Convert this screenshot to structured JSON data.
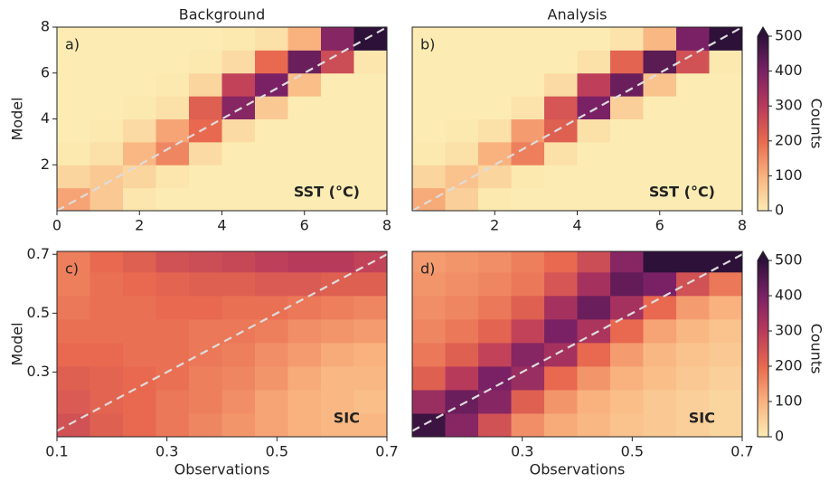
{
  "chart_data": [
    {
      "type": "hexbin",
      "title": "Background",
      "panel_label": "a)",
      "annotation": "SST (°C)",
      "ylabel": "Model",
      "xlim": [
        0,
        8
      ],
      "ylim": [
        0,
        8
      ],
      "xticks": [
        0,
        2,
        4,
        6,
        8
      ],
      "yticks": [
        2,
        4,
        6,
        8
      ],
      "diagonal": true,
      "clim": [
        0,
        500
      ],
      "colormap": [
        "#fcecb3",
        "#f9b27e",
        "#e8694f",
        "#b83a5b",
        "#7a2165",
        "#2d1139"
      ],
      "x_centers": [
        0.4,
        1.2,
        2.0,
        2.8,
        3.6,
        4.4,
        5.2,
        6.0,
        6.8,
        7.6
      ],
      "y_centers": [
        0.5,
        1.5,
        2.5,
        3.5,
        4.5,
        5.5,
        6.5,
        7.5
      ],
      "counts": [
        [
          120,
          60,
          10,
          0,
          0,
          0,
          0,
          0,
          0,
          0
        ],
        [
          40,
          60,
          40,
          10,
          0,
          0,
          0,
          0,
          0,
          0
        ],
        [
          5,
          20,
          90,
          160,
          30,
          0,
          0,
          0,
          0,
          0
        ],
        [
          0,
          5,
          30,
          120,
          200,
          30,
          0,
          0,
          0,
          0
        ],
        [
          0,
          0,
          5,
          20,
          220,
          380,
          60,
          0,
          0,
          0
        ],
        [
          0,
          0,
          0,
          5,
          40,
          280,
          400,
          80,
          0,
          0
        ],
        [
          0,
          0,
          0,
          0,
          5,
          30,
          200,
          420,
          260,
          10
        ],
        [
          0,
          0,
          0,
          0,
          0,
          5,
          20,
          100,
          380,
          500
        ]
      ]
    },
    {
      "type": "hexbin",
      "title": "Analysis",
      "panel_label": "b)",
      "annotation": "SST (°C)",
      "xlim": [
        0,
        8
      ],
      "ylim": [
        0,
        8
      ],
      "xticks": [
        2,
        4,
        6,
        8
      ],
      "diagonal": true,
      "clim": [
        0,
        500
      ],
      "colormap": [
        "#fcecb3",
        "#f9b27e",
        "#e8694f",
        "#b83a5b",
        "#7a2165",
        "#2d1139"
      ],
      "colorbar": {
        "label": "Counts",
        "ticks": [
          0,
          100,
          200,
          300,
          400,
          500
        ]
      },
      "x_centers": [
        0.4,
        1.2,
        2.0,
        2.8,
        3.6,
        4.4,
        5.2,
        6.0,
        6.8,
        7.6
      ],
      "y_centers": [
        0.5,
        1.5,
        2.5,
        3.5,
        4.5,
        5.5,
        6.5,
        7.5
      ],
      "counts": [
        [
          110,
          50,
          5,
          0,
          0,
          0,
          0,
          0,
          0,
          0
        ],
        [
          40,
          70,
          40,
          5,
          0,
          0,
          0,
          0,
          0,
          0
        ],
        [
          5,
          20,
          100,
          170,
          20,
          0,
          0,
          0,
          0,
          0
        ],
        [
          0,
          5,
          20,
          130,
          220,
          20,
          0,
          0,
          0,
          0
        ],
        [
          0,
          0,
          0,
          15,
          240,
          400,
          50,
          0,
          0,
          0
        ],
        [
          0,
          0,
          0,
          0,
          30,
          290,
          420,
          70,
          0,
          0
        ],
        [
          0,
          0,
          0,
          0,
          0,
          20,
          210,
          440,
          250,
          5
        ],
        [
          0,
          0,
          0,
          0,
          0,
          0,
          15,
          90,
          400,
          500
        ]
      ]
    },
    {
      "type": "hexbin",
      "panel_label": "c)",
      "annotation": "SIC",
      "xlabel": "Observations",
      "ylabel": "Model",
      "xlim": [
        0.1,
        0.7
      ],
      "ylim": [
        0.08,
        0.71
      ],
      "xticks": [
        0.1,
        0.3,
        0.5,
        0.7
      ],
      "yticks": [
        0.3,
        0.5,
        0.7
      ],
      "diagonal": true,
      "clim": [
        0,
        500
      ],
      "colormap": [
        "#fcecb3",
        "#f9b27e",
        "#e8694f",
        "#b83a5b",
        "#7a2165",
        "#2d1139"
      ],
      "x_centers": [
        0.13,
        0.19,
        0.25,
        0.31,
        0.37,
        0.43,
        0.49,
        0.55,
        0.61,
        0.67
      ],
      "y_centers": [
        0.12,
        0.2,
        0.28,
        0.36,
        0.44,
        0.52,
        0.6,
        0.68
      ],
      "counts": [
        [
          250,
          220,
          200,
          180,
          160,
          140,
          120,
          100,
          90,
          90
        ],
        [
          230,
          210,
          200,
          180,
          170,
          150,
          120,
          100,
          90,
          80
        ],
        [
          220,
          210,
          200,
          190,
          170,
          160,
          140,
          110,
          90,
          90
        ],
        [
          200,
          200,
          190,
          190,
          180,
          170,
          150,
          130,
          110,
          100
        ],
        [
          190,
          190,
          190,
          190,
          180,
          180,
          170,
          150,
          140,
          130
        ],
        [
          180,
          190,
          190,
          200,
          200,
          190,
          190,
          180,
          170,
          160
        ],
        [
          170,
          190,
          200,
          210,
          220,
          220,
          230,
          230,
          220,
          220
        ],
        [
          170,
          200,
          220,
          250,
          260,
          270,
          290,
          300,
          300,
          280
        ]
      ]
    },
    {
      "type": "hexbin",
      "panel_label": "d)",
      "annotation": "SIC",
      "xlabel": "Observations",
      "xlim": [
        0.1,
        0.7
      ],
      "ylim": [
        0.08,
        0.71
      ],
      "xticks": [
        0.3,
        0.5,
        0.7
      ],
      "diagonal": true,
      "clim": [
        0,
        500
      ],
      "colormap": [
        "#fcecb3",
        "#f9b27e",
        "#e8694f",
        "#b83a5b",
        "#7a2165",
        "#2d1139"
      ],
      "colorbar": {
        "label": "Counts",
        "ticks": [
          0,
          100,
          200,
          300,
          400,
          500
        ]
      },
      "x_centers": [
        0.13,
        0.19,
        0.25,
        0.31,
        0.37,
        0.43,
        0.49,
        0.55,
        0.61,
        0.67
      ],
      "y_centers": [
        0.12,
        0.2,
        0.28,
        0.36,
        0.44,
        0.52,
        0.6,
        0.68
      ],
      "counts": [
        [
          480,
          380,
          250,
          150,
          110,
          90,
          70,
          60,
          50,
          40
        ],
        [
          350,
          420,
          380,
          220,
          140,
          100,
          80,
          60,
          50,
          40
        ],
        [
          220,
          300,
          400,
          350,
          200,
          140,
          100,
          80,
          60,
          50
        ],
        [
          180,
          220,
          280,
          380,
          330,
          200,
          130,
          90,
          70,
          60
        ],
        [
          160,
          180,
          210,
          280,
          400,
          320,
          200,
          120,
          90,
          70
        ],
        [
          150,
          160,
          180,
          220,
          330,
          420,
          330,
          200,
          130,
          100
        ],
        [
          140,
          150,
          160,
          180,
          240,
          330,
          430,
          400,
          250,
          180
        ],
        [
          130,
          140,
          150,
          170,
          200,
          260,
          380,
          500,
          500,
          500
        ]
      ]
    }
  ]
}
